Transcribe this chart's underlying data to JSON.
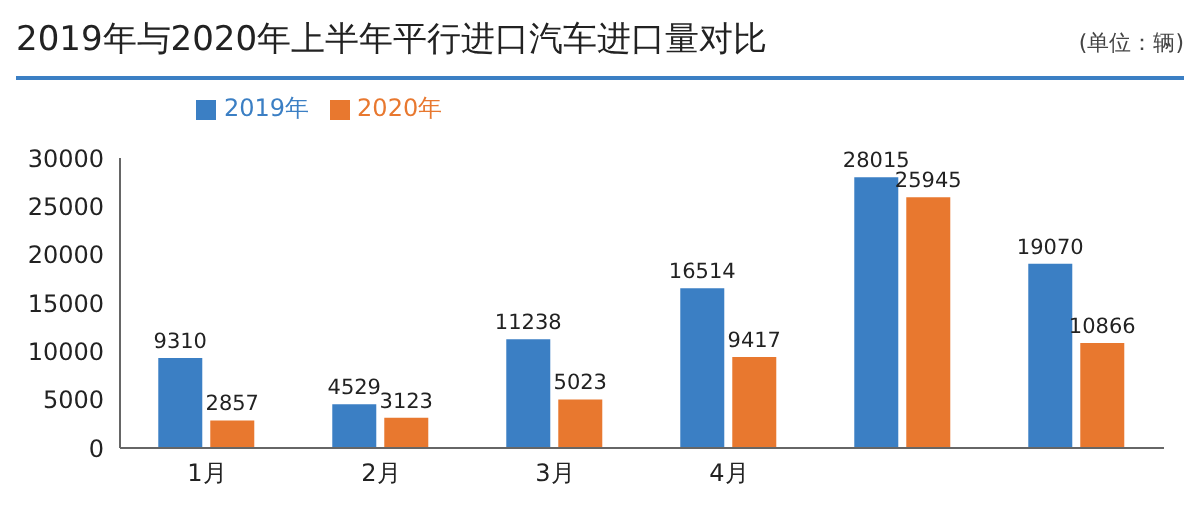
{
  "chart_data": {
    "type": "bar",
    "title": "2019年与2020年上半年平行进口汽车进口量对比",
    "annotations": [
      "(单位：辆)"
    ],
    "categories": [
      "1月",
      "2月",
      "3月",
      "4月",
      null,
      null
    ],
    "series": [
      {
        "name": "2019年",
        "color": "#3b7fc4",
        "values": [
          9310,
          4529,
          11238,
          16514,
          28015,
          19070
        ]
      },
      {
        "name": "2020年",
        "color": "#e8782f",
        "values": [
          2857,
          3123,
          5023,
          9417,
          25945,
          10866
        ]
      }
    ],
    "ylim": [
      0,
      30000
    ],
    "yticks": [
      0,
      5000,
      10000,
      15000,
      20000,
      25000,
      30000
    ],
    "data_labels": true,
    "legend": "top left",
    "grid": false
  }
}
